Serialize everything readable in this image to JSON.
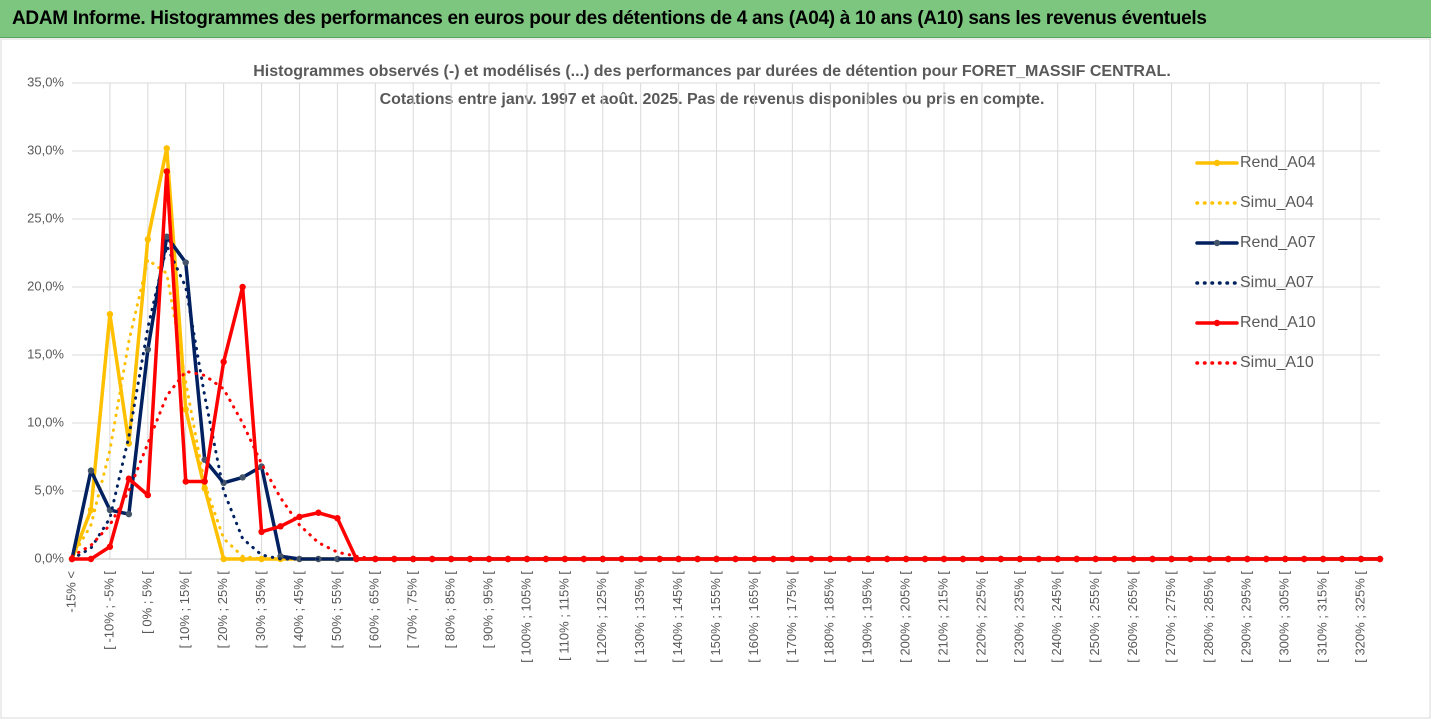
{
  "header": {
    "title": "ADAM Informe. Histogrammes des performances en euros pour des détentions de 4 ans (A04) à 10 ans (A10) sans les revenus éventuels"
  },
  "chart_data": {
    "type": "line",
    "title": "Histogrammes observés (-) et modélisés (...) des performances par durées de détention pour FORET_MASSIF CENTRAL.",
    "subtitle": "Cotations entre janv. 1997 et août. 2025. Pas de revenus disponibles ou pris en compte.",
    "categories": [
      "-15% <",
      null,
      "[ -10% ; -5% [",
      null,
      "[ 0% ; 5% [",
      null,
      "[ 10% ; 15% [",
      null,
      "[ 20% ; 25% [",
      null,
      "[ 30% ; 35% [",
      null,
      "[ 40% ; 45% [",
      null,
      "[ 50% ; 55% [",
      null,
      "[ 60% ; 65% [",
      null,
      "[ 70% ; 75% [",
      null,
      "[ 80% ; 85% [",
      null,
      "[ 90% ; 95% [",
      null,
      "[ 100% ; 105% [",
      null,
      "[ 110% ; 115% [",
      null,
      "[ 120% ; 125% [",
      null,
      "[ 130% ; 135% [",
      null,
      "[ 140% ; 145% [",
      null,
      "[ 150% ; 155% [",
      null,
      "[ 160% ; 165% [",
      null,
      "[ 170% ; 175% [",
      null,
      "[ 180% ; 185% [",
      null,
      "[ 190% ; 195% [",
      null,
      "[ 200% ; 205% [",
      null,
      "[ 210% ; 215% [",
      null,
      "[ 220% ; 225% [",
      null,
      "[ 230% ; 235% [",
      null,
      "[ 240% ; 245% [",
      null,
      "[ 250% ; 255% [",
      null,
      "[ 260% ; 265% [",
      null,
      "[ 270% ; 275% [",
      null,
      "[ 280% ; 285% [",
      null,
      "[ 290% ; 295% [",
      null,
      "[ 300% ; 305% [",
      null,
      "[ 310% ; 315% [",
      null,
      "[ 320% ; 325% [",
      null
    ],
    "series": [
      {
        "name": "Rend_A04",
        "color": "#ffc000",
        "style": "solid",
        "values": [
          0,
          3.6,
          18,
          8.5,
          23.5,
          30.2,
          11,
          5.2,
          0,
          0,
          0,
          0,
          0,
          0,
          0,
          0,
          0,
          0,
          0,
          0,
          0,
          0,
          0,
          0,
          0,
          0,
          0,
          0,
          0,
          0,
          0,
          0,
          0,
          0,
          0,
          0,
          0,
          0,
          0,
          0,
          0,
          0,
          0,
          0,
          0,
          0,
          0,
          0,
          0,
          0,
          0,
          0,
          0,
          0,
          0,
          0,
          0,
          0,
          0,
          0,
          0,
          0,
          0,
          0,
          0,
          0,
          0,
          0,
          0,
          0
        ]
      },
      {
        "name": "Simu_A04",
        "color": "#ffc000",
        "style": "dotted",
        "values": [
          0.1,
          2.5,
          8,
          16,
          22,
          21,
          13,
          5.5,
          1.5,
          0.2,
          0,
          0,
          0,
          0,
          0,
          0,
          0,
          0,
          0,
          0,
          0,
          0,
          0,
          0,
          0,
          0,
          0,
          0,
          0,
          0,
          0,
          0,
          0,
          0,
          0,
          0,
          0,
          0,
          0,
          0,
          0,
          0,
          0,
          0,
          0,
          0,
          0,
          0,
          0,
          0,
          0,
          0,
          0,
          0,
          0,
          0,
          0,
          0,
          0,
          0,
          0,
          0,
          0,
          0,
          0,
          0,
          0,
          0,
          0,
          0
        ]
      },
      {
        "name": "Rend_A07",
        "color": "#002060",
        "style": "solid",
        "values": [
          0,
          6.5,
          3.6,
          3.3,
          15.4,
          23.7,
          21.8,
          7.3,
          5.6,
          6.0,
          6.8,
          0.2,
          0,
          0,
          0,
          0,
          0,
          0,
          0,
          0,
          0,
          0,
          0,
          0,
          0,
          0,
          0,
          0,
          0,
          0,
          0,
          0,
          0,
          0,
          0,
          0,
          0,
          0,
          0,
          0,
          0,
          0,
          0,
          0,
          0,
          0,
          0,
          0,
          0,
          0,
          0,
          0,
          0,
          0,
          0,
          0,
          0,
          0,
          0,
          0,
          0,
          0,
          0,
          0,
          0,
          0,
          0,
          0,
          0,
          0
        ]
      },
      {
        "name": "Simu_A07",
        "color": "#002060",
        "style": "dotted",
        "values": [
          0,
          0.8,
          3,
          9,
          17,
          23,
          20,
          12,
          5,
          1.5,
          0.3,
          0,
          0,
          0,
          0,
          0,
          0,
          0,
          0,
          0,
          0,
          0,
          0,
          0,
          0,
          0,
          0,
          0,
          0,
          0,
          0,
          0,
          0,
          0,
          0,
          0,
          0,
          0,
          0,
          0,
          0,
          0,
          0,
          0,
          0,
          0,
          0,
          0,
          0,
          0,
          0,
          0,
          0,
          0,
          0,
          0,
          0,
          0,
          0,
          0,
          0,
          0,
          0,
          0,
          0,
          0,
          0,
          0,
          0,
          0
        ]
      },
      {
        "name": "Rend_A10",
        "color": "#ff0000",
        "style": "solid",
        "values": [
          0,
          0,
          0.9,
          5.9,
          4.7,
          28.5,
          5.7,
          5.7,
          14.5,
          20,
          2,
          2.4,
          3.1,
          3.4,
          3,
          0,
          0,
          0,
          0,
          0,
          0,
          0,
          0,
          0,
          0,
          0,
          0,
          0,
          0,
          0,
          0,
          0,
          0,
          0,
          0,
          0,
          0,
          0,
          0,
          0,
          0,
          0,
          0,
          0,
          0,
          0,
          0,
          0,
          0,
          0,
          0,
          0,
          0,
          0,
          0,
          0,
          0,
          0,
          0,
          0,
          0,
          0,
          0,
          0,
          0,
          0,
          0,
          0,
          0,
          0
        ]
      },
      {
        "name": "Simu_A10",
        "color": "#ff0000",
        "style": "dotted",
        "values": [
          0.2,
          1,
          2.5,
          5,
          8.5,
          12,
          13.8,
          13.5,
          12.5,
          10,
          7,
          4.5,
          2.5,
          1.2,
          0.5,
          0.2,
          0,
          0,
          0,
          0,
          0,
          0,
          0,
          0,
          0,
          0,
          0,
          0,
          0,
          0,
          0,
          0,
          0,
          0,
          0,
          0,
          0,
          0,
          0,
          0,
          0,
          0,
          0,
          0,
          0,
          0,
          0,
          0,
          0,
          0,
          0,
          0,
          0,
          0,
          0,
          0,
          0,
          0,
          0,
          0,
          0,
          0,
          0,
          0,
          0,
          0,
          0,
          0,
          0,
          0
        ]
      }
    ],
    "ylim": [
      0,
      35
    ],
    "yticks": [
      {
        "value": 0,
        "label": "0,0%"
      },
      {
        "value": 5,
        "label": "5,0%"
      },
      {
        "value": 10,
        "label": "10,0%"
      },
      {
        "value": 15,
        "label": "15,0%"
      },
      {
        "value": 20,
        "label": "20,0%"
      },
      {
        "value": 25,
        "label": "25,0%"
      },
      {
        "value": 30,
        "label": "30,0%"
      },
      {
        "value": 35,
        "label": "35,0%"
      }
    ],
    "grid": true,
    "legend": "right"
  }
}
